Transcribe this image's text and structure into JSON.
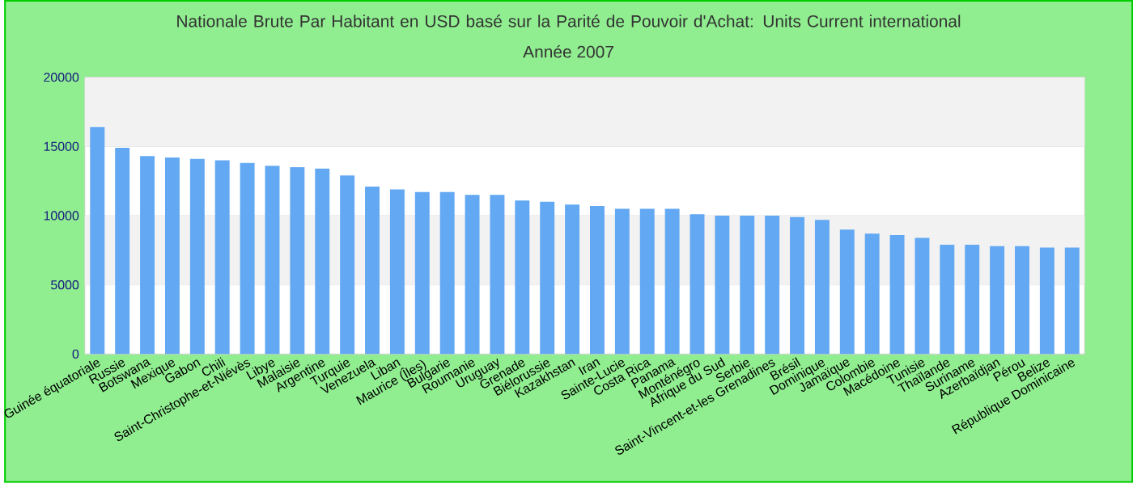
{
  "chart_data": {
    "type": "bar",
    "title": "Nationale Brute Par Habitant en USD basé sur la Parité de Pouvoir d'Achat: Units Current international",
    "subtitle": "Année 2007",
    "categories": [
      "Guinée équatoriale",
      "Russie",
      "Botswana",
      "Mexique",
      "Gabon",
      "Chili",
      "Saint-Christophe-et-Niévès",
      "Libye",
      "Malaisie",
      "Argentine",
      "Turquie",
      "Venezuela",
      "Liban",
      "Maurice (Îles)",
      "Bulgarie",
      "Roumanie",
      "Uruguay",
      "Grenade",
      "Biélorussie",
      "Kazakhstan",
      "Iran",
      "Sainte-Lucie",
      "Costa Rica",
      "Panama",
      "Monténégro",
      "Afrique du Sud",
      "Serbie",
      "Saint-Vincent-et-les Grenadines",
      "Brésil",
      "Dominique",
      "Jamaïque",
      "Colombie",
      "Macédoine",
      "Tunisie",
      "Thaïlande",
      "Suriname",
      "Azerbaïdjan",
      "Pérou",
      "Belize",
      "République Dominicaine"
    ],
    "values": [
      16400,
      14900,
      14300,
      14200,
      14100,
      14000,
      13800,
      13600,
      13500,
      13400,
      12900,
      12100,
      11900,
      11700,
      11700,
      11500,
      11500,
      11100,
      11000,
      10800,
      10700,
      10500,
      10500,
      10500,
      10100,
      10000,
      10000,
      10000,
      9900,
      9700,
      9000,
      8700,
      8600,
      8400,
      7900,
      7900,
      7800,
      7800,
      7700,
      7700
    ],
    "color": "#62a8f2",
    "ylim": [
      0,
      20000
    ],
    "yticks": [
      0,
      5000,
      10000,
      15000,
      20000
    ],
    "grid": "y"
  }
}
